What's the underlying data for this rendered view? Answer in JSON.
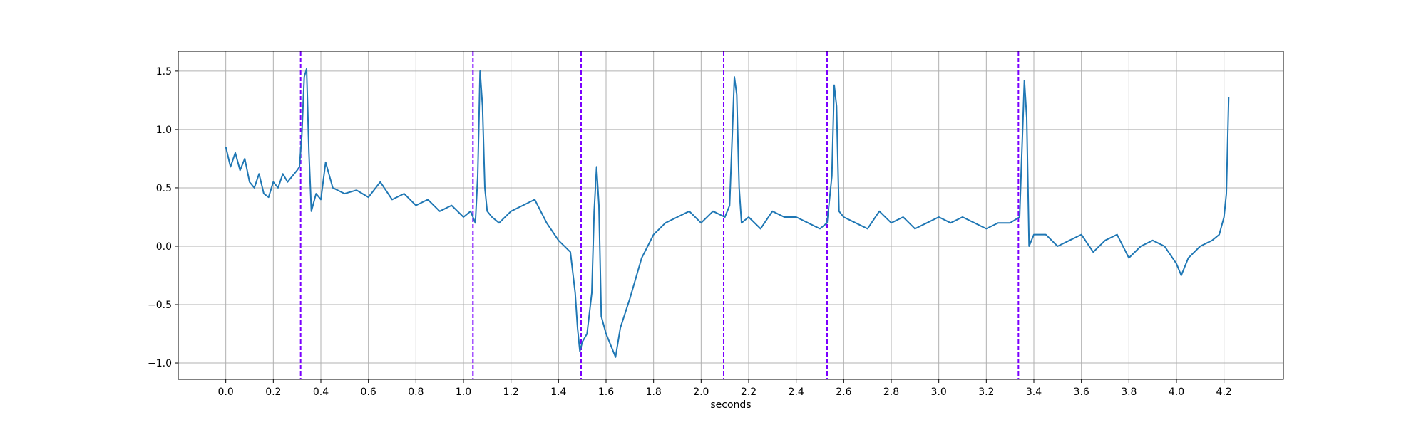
{
  "chart_data": {
    "type": "line",
    "title": "",
    "xlabel": "seconds",
    "ylabel": "",
    "xlim": [
      -0.2,
      4.45
    ],
    "ylim": [
      -1.14,
      1.67
    ],
    "grid": true,
    "x_ticks": [
      0.0,
      0.2,
      0.4,
      0.6,
      0.8,
      1.0,
      1.2,
      1.4,
      1.6,
      1.8,
      2.0,
      2.2,
      2.4,
      2.6,
      2.8,
      3.0,
      3.2,
      3.4,
      3.6,
      3.8,
      4.0,
      4.2
    ],
    "x_tick_labels": [
      "0.0",
      "0.2",
      "0.4",
      "0.6",
      "0.8",
      "1.0",
      "1.2",
      "1.4",
      "1.6",
      "1.8",
      "2.0",
      "2.2",
      "2.4",
      "2.6",
      "2.8",
      "3.0",
      "3.2",
      "3.4",
      "3.6",
      "3.8",
      "4.0",
      "4.2"
    ],
    "y_ticks": [
      -1.0,
      -0.5,
      0.0,
      0.5,
      1.0,
      1.5
    ],
    "y_tick_labels": [
      "−1.0",
      "−0.5",
      "0.0",
      "0.5",
      "1.0",
      "1.5"
    ],
    "series": [
      {
        "color": "#1f77b4",
        "x": [
          0.0,
          0.02,
          0.04,
          0.06,
          0.08,
          0.1,
          0.12,
          0.14,
          0.16,
          0.18,
          0.2,
          0.22,
          0.24,
          0.26,
          0.28,
          0.3,
          0.31,
          0.32,
          0.33,
          0.34,
          0.35,
          0.36,
          0.38,
          0.4,
          0.42,
          0.45,
          0.5,
          0.55,
          0.6,
          0.65,
          0.7,
          0.75,
          0.8,
          0.85,
          0.9,
          0.95,
          1.0,
          1.03,
          1.05,
          1.06,
          1.07,
          1.08,
          1.09,
          1.1,
          1.12,
          1.15,
          1.2,
          1.25,
          1.3,
          1.35,
          1.4,
          1.45,
          1.47,
          1.48,
          1.49,
          1.5,
          1.52,
          1.54,
          1.55,
          1.56,
          1.57,
          1.58,
          1.6,
          1.62,
          1.64,
          1.66,
          1.7,
          1.75,
          1.8,
          1.85,
          1.9,
          1.95,
          2.0,
          2.05,
          2.1,
          2.12,
          2.13,
          2.14,
          2.15,
          2.16,
          2.17,
          2.2,
          2.25,
          2.3,
          2.35,
          2.4,
          2.45,
          2.5,
          2.53,
          2.55,
          2.56,
          2.57,
          2.58,
          2.6,
          2.65,
          2.7,
          2.75,
          2.8,
          2.85,
          2.9,
          2.95,
          3.0,
          3.05,
          3.1,
          3.15,
          3.2,
          3.25,
          3.3,
          3.34,
          3.36,
          3.37,
          3.38,
          3.4,
          3.45,
          3.5,
          3.55,
          3.6,
          3.65,
          3.7,
          3.75,
          3.8,
          3.85,
          3.9,
          3.95,
          4.0,
          4.02,
          4.05,
          4.1,
          4.15,
          4.18,
          4.2,
          4.21,
          4.22
        ],
        "y": [
          0.85,
          0.68,
          0.8,
          0.65,
          0.75,
          0.55,
          0.5,
          0.62,
          0.45,
          0.42,
          0.55,
          0.5,
          0.62,
          0.55,
          0.6,
          0.65,
          0.68,
          0.95,
          1.45,
          1.52,
          0.8,
          0.3,
          0.45,
          0.4,
          0.72,
          0.5,
          0.45,
          0.48,
          0.42,
          0.55,
          0.4,
          0.45,
          0.35,
          0.4,
          0.3,
          0.35,
          0.25,
          0.3,
          0.2,
          0.6,
          1.5,
          1.2,
          0.5,
          0.3,
          0.25,
          0.2,
          0.3,
          0.35,
          0.4,
          0.2,
          0.05,
          -0.05,
          -0.4,
          -0.7,
          -0.9,
          -0.82,
          -0.75,
          -0.4,
          0.3,
          0.68,
          0.35,
          -0.6,
          -0.75,
          -0.85,
          -0.95,
          -0.7,
          -0.45,
          -0.1,
          0.1,
          0.2,
          0.25,
          0.3,
          0.2,
          0.3,
          0.25,
          0.35,
          0.9,
          1.45,
          1.3,
          0.5,
          0.2,
          0.25,
          0.15,
          0.3,
          0.25,
          0.25,
          0.2,
          0.15,
          0.2,
          0.6,
          1.38,
          1.2,
          0.3,
          0.25,
          0.2,
          0.15,
          0.3,
          0.2,
          0.25,
          0.15,
          0.2,
          0.25,
          0.2,
          0.25,
          0.2,
          0.15,
          0.2,
          0.2,
          0.25,
          1.42,
          1.1,
          0.0,
          0.1,
          0.1,
          0.0,
          0.05,
          0.1,
          -0.05,
          0.05,
          0.1,
          -0.1,
          0.0,
          0.05,
          0.0,
          -0.15,
          -0.25,
          -0.1,
          0.0,
          0.05,
          0.1,
          0.25,
          0.45,
          1.28
        ]
      }
    ],
    "vertical_lines": {
      "color": "#7b00ff",
      "style": "dashed",
      "x": [
        0.315,
        1.04,
        1.495,
        2.095,
        2.53,
        3.335
      ]
    }
  }
}
